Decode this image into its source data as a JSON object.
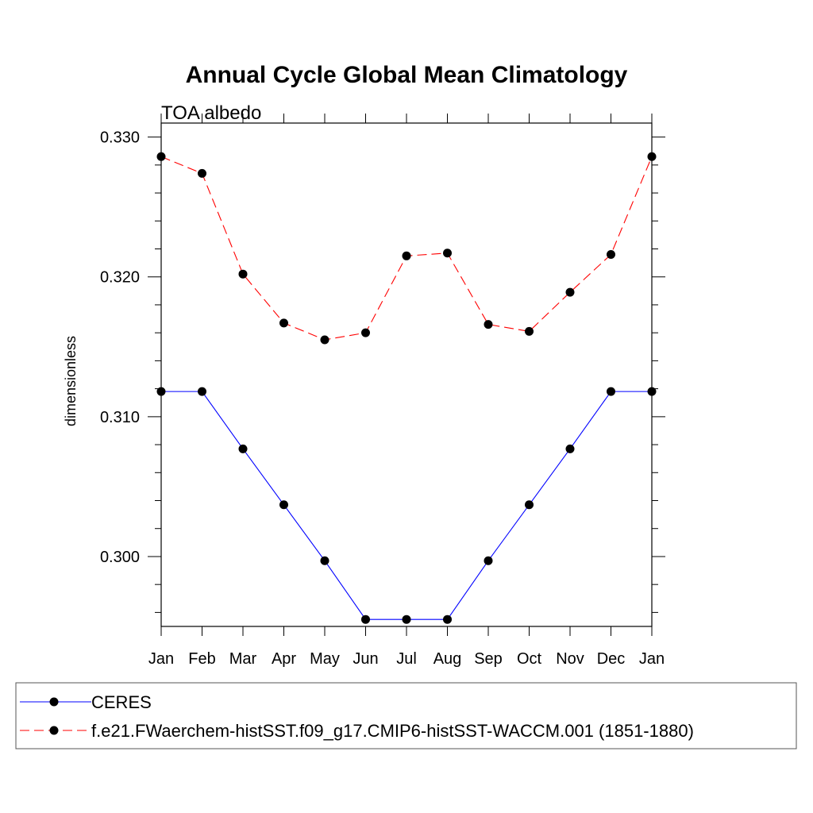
{
  "chart_data": {
    "type": "line",
    "title": "Annual Cycle Global Mean Climatology",
    "subtitle": "TOA albedo",
    "ylabel": "dimensionless",
    "xlabel": "",
    "categories": [
      "Jan",
      "Feb",
      "Mar",
      "Apr",
      "May",
      "Jun",
      "Jul",
      "Aug",
      "Sep",
      "Oct",
      "Nov",
      "Dec",
      "Jan"
    ],
    "ylim": [
      0.295,
      0.331
    ],
    "yticks": [
      "0.300",
      "0.310",
      "0.320",
      "0.330"
    ],
    "series": [
      {
        "name": "CERES",
        "color": "#0000ff",
        "dash": "solid",
        "marker": "filled-circle",
        "values": [
          0.3118,
          0.3118,
          0.3077,
          0.3037,
          0.2997,
          0.2955,
          0.2955,
          0.2955,
          0.2997,
          0.3037,
          0.3077,
          0.3118,
          0.3118
        ]
      },
      {
        "name": "f.e21.FWaerchem-histSST.f09_g17.CMIP6-histSST-WACCM.001 (1851-1880)",
        "color": "#ff0000",
        "dash": "dashed",
        "marker": "filled-circle",
        "values": [
          0.3286,
          0.3274,
          0.3202,
          0.3167,
          0.3155,
          0.316,
          0.3215,
          0.3217,
          0.3166,
          0.3161,
          0.3189,
          0.3216,
          0.3286
        ]
      }
    ],
    "legend_position": "bottom"
  }
}
